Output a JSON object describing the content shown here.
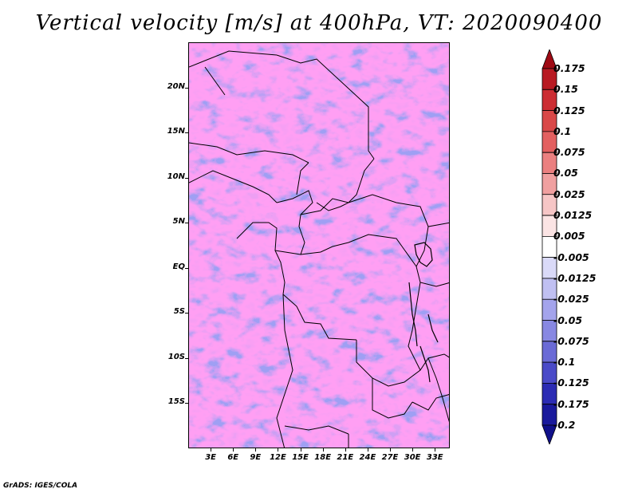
{
  "title": "Vertical velocity [m/s] at 400hPa, VT: 2020090400",
  "credit": "GrADS: IGES/COLA",
  "map": {
    "lat_labels": [
      "20N",
      "15N",
      "10N",
      "5N",
      "EQ",
      "5S",
      "10S",
      "15S"
    ],
    "lon_labels": [
      "3E",
      "6E",
      "9E",
      "12E",
      "15E",
      "18E",
      "21E",
      "24E",
      "27E",
      "30E",
      "33E"
    ],
    "extent": {
      "lon_min": 0,
      "lon_max": 35,
      "lat_min": -20,
      "lat_max": 25
    }
  },
  "colorbar": {
    "labels": [
      "0.175",
      "0.15",
      "0.125",
      "0.1",
      "0.075",
      "0.05",
      "0.025",
      "0.0125",
      "0.005",
      "-0.005",
      "-0.0125",
      "-0.025",
      "-0.05",
      "-0.075",
      "-0.1",
      "-0.125",
      "-0.175",
      "-0.2"
    ],
    "colors": [
      "#9e0a14",
      "#b81a22",
      "#cc2d33",
      "#d94848",
      "#e36060",
      "#eb8080",
      "#f0a0a0",
      "#f6c6c6",
      "#fbe4e4",
      "#ffffff",
      "#dadaf8",
      "#c0c0f2",
      "#a4a4ec",
      "#8888e2",
      "#6a6ad6",
      "#4a4ac8",
      "#2c2cb4",
      "#1a1a9c",
      "#10108a"
    ]
  }
}
